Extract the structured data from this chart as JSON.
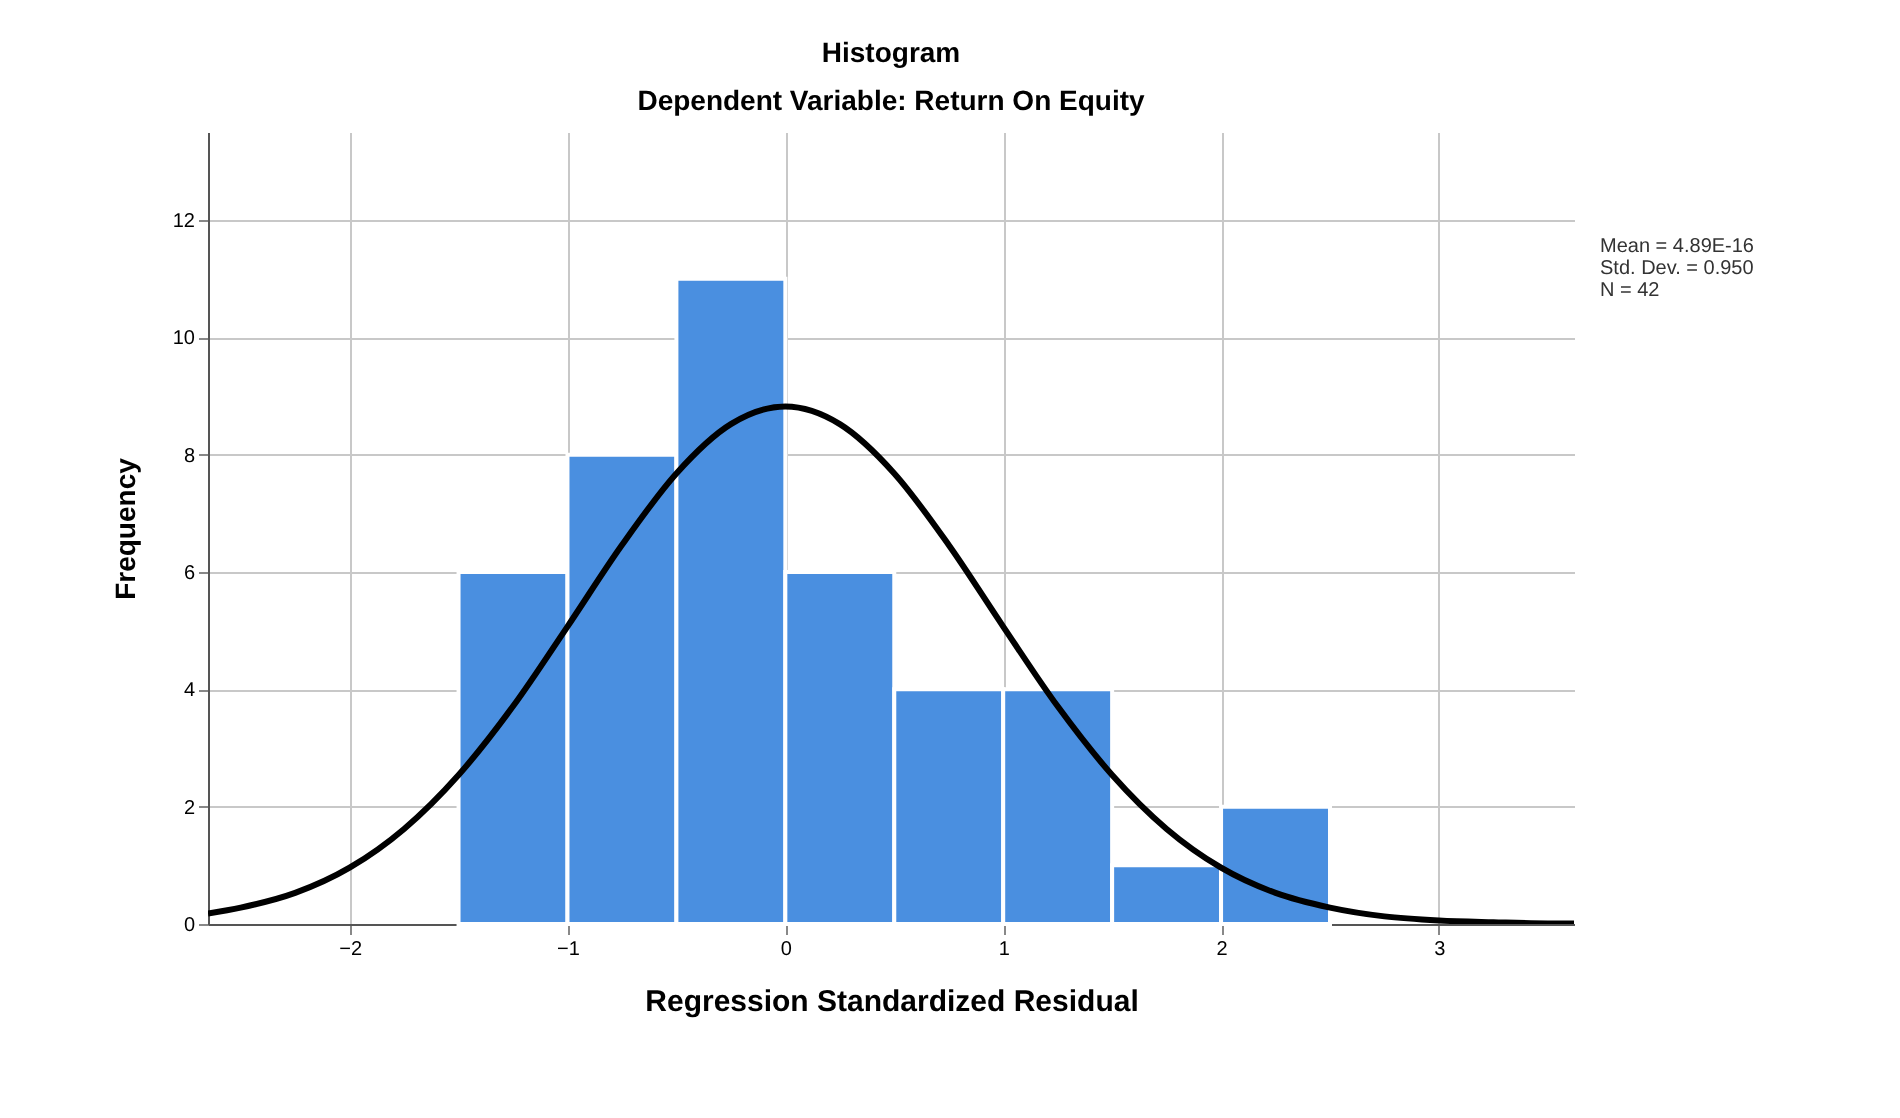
{
  "chart_data": {
    "type": "histogram",
    "title": "Histogram",
    "subtitle": "Dependent Variable: Return On Equity",
    "xlabel": "Regression Standardized Residual",
    "ylabel": "Frequency",
    "annotations": [
      "Mean = 4.89E-16",
      "Std. Dev. = 0.950",
      "N = 42"
    ],
    "bins": [
      -1.5,
      -1,
      -0.5,
      0,
      0.5,
      1,
      1.5,
      2,
      2.5
    ],
    "series": [
      {
        "color": "#4a8fe0",
        "values": [
          6,
          8,
          11,
          6,
          4,
          4,
          1,
          2
        ]
      },
      {
        "type": "line",
        "color": "#000000",
        "x": [
          -2.65,
          -2.5,
          -2.25,
          -2,
          -1.75,
          -1.5,
          -1.25,
          -1,
          -0.75,
          -0.5,
          -0.25,
          0,
          0.25,
          0.5,
          0.75,
          1,
          1.25,
          1.5,
          1.75,
          2,
          2.25,
          2.5,
          2.75,
          3,
          3.25,
          3.5,
          3.62
        ],
        "values": [
          0.18,
          0.28,
          0.53,
          0.96,
          1.62,
          2.54,
          3.71,
          5.07,
          6.46,
          7.68,
          8.52,
          8.82,
          8.52,
          7.68,
          6.46,
          5.07,
          3.71,
          2.54,
          1.62,
          0.96,
          0.53,
          0.28,
          0.13,
          0.06,
          0.03,
          0.01,
          0.01
        ]
      }
    ],
    "xlim": [
      -2.65,
      3.62
    ],
    "xticks": [
      -2,
      -1,
      0,
      1,
      2,
      3
    ],
    "ylim": [
      0,
      13.5
    ],
    "yticks": [
      0,
      2,
      4,
      6,
      8,
      10,
      12
    ],
    "grid": true
  }
}
